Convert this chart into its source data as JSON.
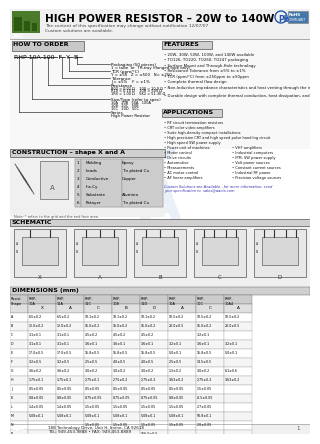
{
  "title": "HIGH POWER RESISTOR – 20W to 140W",
  "subtitle_line1": "The content of this specification may change without notification 12/07/07",
  "subtitle_line2": "Custom solutions are available.",
  "part_number": "RHP-10A-100 F Y B",
  "bg_color": "#ffffff",
  "header_bg": "#e8e8e8",
  "section_bg": "#d0d0d0",
  "green_color": "#4a7a2a",
  "blue_watermark": "#a8c4e0",
  "features": [
    "20W, 30W, 50W, 100W, and 140W available",
    "TO126, TO220, TO260, TO247 packaging",
    "Surface Mount and Through-Hole technology",
    "Resistance Tolerance from ±5% to ±1%",
    "TCR (ppm/°C) from ±250ppm to ±50ppm",
    "Complete thermal flow design",
    "Non-Inductive impedance characteristics and heat venting through the insulated metal tab",
    "Durable design with complete thermal conduction, heat dissipation, and vibration"
  ],
  "applications_col1": [
    "RF circuit termination resistors",
    "CRT color video amplifiers",
    "Suite high-density compact installations",
    "High precision CRT and high speed pulse handling circuit",
    "High speed SW power supply",
    "Power unit of machines",
    "Motor control",
    "Drive circuits",
    "Automotive",
    "Measurements",
    "AC motor control",
    "AF linear amplifiers"
  ],
  "applications_col2": [
    "VHF amplifiers",
    "Industrial computers",
    "IPM, SW power supply",
    "Volt power sources",
    "Constant current sources",
    "Industrial RF power",
    "Precision voltage sources"
  ],
  "construction_items": [
    [
      "1",
      "Molding",
      "Epoxy"
    ],
    [
      "2",
      "Leads",
      "Tin plated Cu"
    ],
    [
      "3",
      "Conductive",
      "Copper"
    ],
    [
      "4",
      "Ins.Cy",
      ""
    ],
    [
      "5",
      "Substrate",
      "Alumina"
    ],
    [
      "6",
      "Potayer",
      "Tin plated Cu"
    ]
  ],
  "dim_headers": [
    "Resist Shape",
    "RHP-10A",
    "RHP-11A",
    "RHP-11C",
    "RHP-10B",
    "RHP-11D",
    "RHP-10A",
    "RHP-10C",
    "RHP-10A4"
  ],
  "dim_shape_row": [
    "",
    "X",
    "A",
    "C",
    "B",
    "D",
    "A",
    "C",
    "A"
  ],
  "dim_rows": [
    [
      "A",
      "6.5±0.2",
      "6.5±0.2",
      "10.1±0.2",
      "10.1±0.2",
      "10.1±0.2",
      "10.5±0.2",
      "10.5±0.2",
      "10.5±0.2"
    ],
    [
      "B",
      "12.0±0.2",
      "12.0±0.2",
      "15.0±0.2",
      "15.0±0.2",
      "15.0±0.2",
      "20.0±0.5",
      "15.0±0.2",
      "20.0±0.5"
    ],
    [
      "C",
      "3.1±0.1",
      "3.1±0.1",
      "4.5±0.2",
      "4.5±0.2",
      "4.5±0.2",
      "",
      "3.2±0.1",
      ""
    ],
    [
      "D",
      "3.1±0.1",
      "3.1±0.1",
      "3.6±0.1",
      "3.6±0.1",
      "3.6±0.1",
      "3.2±0.1",
      "3.6±0.1",
      "3.2±0.1"
    ],
    [
      "E",
      "17.0±0.5",
      "17.0±0.5",
      "15.8±0.5",
      "15.8±0.5",
      "15.8±0.5",
      "5.0±0.1",
      "15.8±0.5",
      "5.0±0.1"
    ],
    [
      "F",
      "3.2±0.5",
      "3.2±0.5",
      "2.5±0.5",
      "4.0±0.5",
      "4.0±0.5",
      "2.5±0.5",
      "14.5±0.5",
      ""
    ],
    [
      "G",
      "3.6±0.2",
      "3.6±0.2",
      "3.0±0.2",
      "3.0±0.2",
      "3.0±0.2",
      "1.3±0.2",
      "3.0±0.2",
      "6.1±0.6"
    ],
    [
      "H",
      "1.75±0.1",
      "1.75±0.1",
      "2.75±0.1",
      "2.75±0.2",
      "2.75±0.2",
      "3.63±0.2",
      "2.75±0.2",
      "3.63±0.2"
    ],
    [
      "J",
      "0.5±0.05",
      "0.5±0.05",
      "0.5±0.05",
      "0.5±0.05",
      "0.5±0.05",
      "0.5±0.05",
      "1.5±0.05",
      ""
    ],
    [
      "K",
      "0.8±0.05",
      "0.8±0.05",
      "0.75±0.05",
      "0.75±0.05",
      "0.75±0.05",
      "0.8±0.05",
      "-0.5±0.05",
      ""
    ],
    [
      "L",
      "1.4±0.05",
      "1.4±0.05",
      "1.5±0.05",
      "1.5±0.05",
      "1.5±0.05",
      "1.5±0.05",
      "2.7±0.05",
      ""
    ],
    [
      "M",
      "5.08±0.1",
      "5.08±0.1",
      "5.08±0.1",
      "5.08±0.1",
      "5.08±0.1",
      "5.08±0.1",
      "50.8±0.1",
      ""
    ],
    [
      "N",
      "",
      "",
      "1.5±0.05",
      "1.5±0.05",
      "1.5±0.05",
      "1.5±0.05",
      "2.0±0.05",
      ""
    ],
    [
      "P",
      "",
      "",
      "",
      "",
      "166.0±0.5",
      "",
      "",
      ""
    ]
  ],
  "address": "188 Technology Drive, Unit H, Irvine, CA 92618",
  "phone": "TEL: 949-453-9888 • FAX: 949-453-8889",
  "how_to_order_label": "HOW TO ORDER",
  "how_to_order_bg": "#c8c8c8",
  "construction_label": "CONSTRUCTION – shape X and A",
  "schematic_label": "SCHEMATIC",
  "dimensions_label": "DIMENSIONS (mm)",
  "custom_solutions_text": "Custom Solutions are Available - for more information, send your specification to  sales@aacts.com"
}
